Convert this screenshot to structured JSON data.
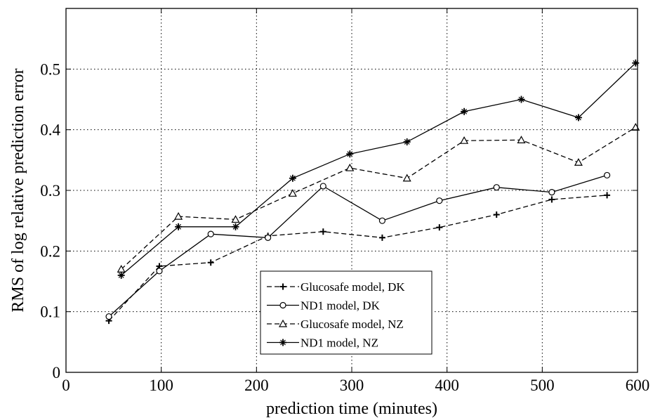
{
  "chart_data": {
    "type": "line",
    "title": "",
    "xlabel": "prediction time (minutes)",
    "ylabel": "RMS of log relative prediction error",
    "xlim": [
      0,
      600
    ],
    "ylim": [
      0,
      0.6
    ],
    "xticks": [
      0,
      100,
      200,
      300,
      400,
      500,
      600
    ],
    "yticks": [
      0,
      0.1,
      0.2,
      0.3,
      0.4,
      0.5
    ],
    "x_tick_labels": [
      "0",
      "100",
      "200",
      "300",
      "400",
      "500",
      "600"
    ],
    "y_tick_labels": [
      "0",
      "0.1",
      "0.2",
      "0.3",
      "0.4",
      "0.5"
    ],
    "grid": true,
    "legend_position": "bottom-center",
    "series": [
      {
        "name": "Glucosafe model, DK",
        "line_style": "dashed",
        "marker": "plus",
        "color": "#000000",
        "x": [
          45,
          98,
          152,
          212,
          270,
          332,
          392,
          452,
          510,
          568
        ],
        "y": [
          0.085,
          0.175,
          0.181,
          0.225,
          0.232,
          0.222,
          0.239,
          0.26,
          0.285,
          0.292
        ]
      },
      {
        "name": "ND1 model, DK",
        "line_style": "solid",
        "marker": "circle",
        "color": "#000000",
        "x": [
          45,
          98,
          152,
          212,
          270,
          332,
          392,
          452,
          510,
          568
        ],
        "y": [
          0.092,
          0.167,
          0.228,
          0.222,
          0.307,
          0.25,
          0.283,
          0.305,
          0.297,
          0.325
        ]
      },
      {
        "name": "Glucosafe model, NZ",
        "line_style": "dashed",
        "marker": "triangle",
        "color": "#000000",
        "x": [
          58,
          118,
          178,
          238,
          298,
          358,
          418,
          478,
          538,
          598
        ],
        "y": [
          0.17,
          0.257,
          0.252,
          0.295,
          0.337,
          0.32,
          0.382,
          0.383,
          0.346,
          0.404
        ]
      },
      {
        "name": "ND1 model, NZ",
        "line_style": "solid",
        "marker": "star",
        "color": "#000000",
        "x": [
          58,
          118,
          178,
          238,
          298,
          358,
          418,
          478,
          538,
          598
        ],
        "y": [
          0.16,
          0.24,
          0.24,
          0.32,
          0.36,
          0.38,
          0.43,
          0.45,
          0.42,
          0.51
        ]
      }
    ]
  }
}
